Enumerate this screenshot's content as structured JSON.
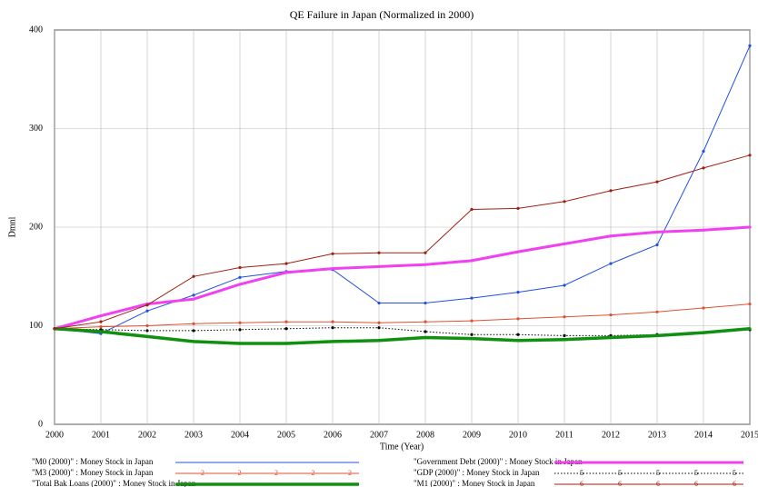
{
  "chart_data": {
    "type": "line",
    "title": "QE Failure in Japan (Normalized in 2000)",
    "x_label": "Time (Year)",
    "y_label": "Dmnl",
    "x": [
      2000,
      2001,
      2002,
      2003,
      2004,
      2005,
      2006,
      2007,
      2008,
      2009,
      2010,
      2011,
      2012,
      2013,
      2014,
      2015
    ],
    "xlim": [
      2000,
      2015
    ],
    "xticks": [
      2000,
      2001,
      2002,
      2003,
      2004,
      2005,
      2006,
      2007,
      2008,
      2009,
      2010,
      2011,
      2012,
      2013,
      2014,
      2015
    ],
    "ylim": [
      0,
      400
    ],
    "yticks": [
      0,
      100,
      200,
      300,
      400
    ],
    "series": [
      {
        "name": "\"M0 (2000)\" : Money Stock in Japan",
        "color": "#2050e0",
        "width": 1,
        "values": [
          97,
          92,
          115,
          131,
          149,
          155,
          157,
          123,
          123,
          128,
          134,
          141,
          163,
          182,
          277,
          384
        ]
      },
      {
        "name": "\"Government Debt (2000)\" : Money Stock in Japan",
        "color": "#f040f0",
        "width": 3,
        "values": [
          97,
          110,
          122,
          127,
          142,
          154,
          158,
          160,
          162,
          166,
          175,
          183,
          191,
          195,
          197,
          200
        ]
      },
      {
        "name": "\"M3 (2000)\" : Money Stock in Japan",
        "color": "#e05030",
        "width": 1,
        "marker": "2",
        "values": [
          97,
          99,
          100,
          102,
          103,
          104,
          104,
          103,
          104,
          105,
          107,
          109,
          111,
          114,
          118,
          122
        ]
      },
      {
        "name": "\"GDP (2000)\" : Money Stock in Japan",
        "color": "#000000",
        "width": 1,
        "dash": true,
        "marker": "5",
        "values": [
          97,
          96,
          95,
          95,
          96,
          97,
          98,
          98,
          94,
          91,
          91,
          90,
          90,
          91,
          93,
          96
        ]
      },
      {
        "name": "\"Total Bak Loans (2000)\" : Money Stock in Japan",
        "color": "#109010",
        "width": 3.5,
        "values": [
          97,
          94,
          89,
          84,
          82,
          82,
          84,
          85,
          88,
          87,
          85,
          86,
          88,
          90,
          93,
          97
        ]
      },
      {
        "name": "\"M1 (2000)\" : Money Stock in Japan",
        "color": "#a02010",
        "width": 1,
        "marker": "6",
        "values": [
          97,
          104,
          121,
          150,
          159,
          163,
          173,
          174,
          174,
          218,
          219,
          226,
          237,
          246,
          260,
          273
        ]
      }
    ]
  }
}
